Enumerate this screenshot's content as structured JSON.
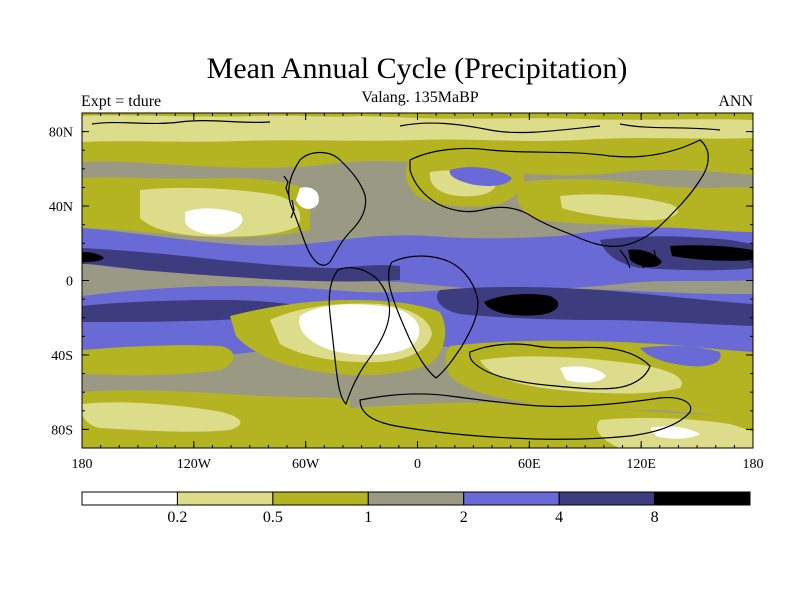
{
  "title": "Mean Annual Cycle (Precipitation)",
  "subtitle": "Valang. 135MaBP",
  "left_label": "Expt = tdure",
  "right_label": "ANN",
  "lat_ticks": [
    {
      "label": "80N",
      "value": 80
    },
    {
      "label": "40N",
      "value": 40
    },
    {
      "label": "0",
      "value": 0
    },
    {
      "label": "40S",
      "value": -40
    },
    {
      "label": "80S",
      "value": -80
    }
  ],
  "lon_ticks": [
    {
      "label": "180",
      "value": -180
    },
    {
      "label": "120W",
      "value": -120
    },
    {
      "label": "60W",
      "value": -60
    },
    {
      "label": "0",
      "value": 0
    },
    {
      "label": "60E",
      "value": 60
    },
    {
      "label": "120E",
      "value": 120
    },
    {
      "label": "180",
      "value": 180
    }
  ],
  "colorbar": {
    "levels": [
      "0.2",
      "0.5",
      "1",
      "2",
      "4",
      "8"
    ],
    "colors": [
      "#ffffff",
      "#dcdc8a",
      "#b4b422",
      "#9a9a84",
      "#6a6ad6",
      "#3c3c7e",
      "#000000"
    ]
  },
  "map": {
    "lon_range": [
      -180,
      180
    ],
    "lat_range": [
      -90,
      90
    ],
    "background_color": "#9a9a84"
  }
}
